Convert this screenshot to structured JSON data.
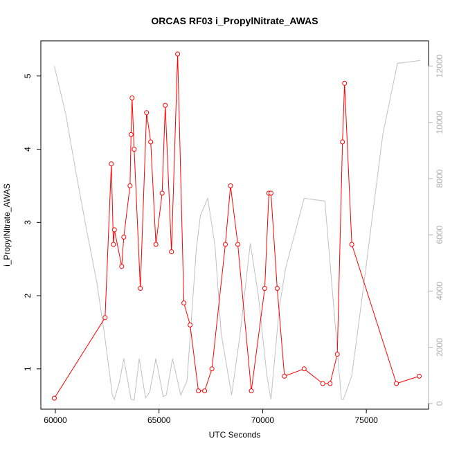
{
  "chart_data": {
    "type": "line",
    "title": "ORCAS RF03 i_PropylNitrate_AWAS",
    "xlabel": "UTC Seconds",
    "ylabel": "i_PropylNitrate_AWAS",
    "xlim": [
      59300,
      78000
    ],
    "ylim": [
      0.45,
      5.48
    ],
    "y2lim": [
      -200,
      12900
    ],
    "x_ticks": [
      60000,
      65000,
      70000,
      75000
    ],
    "y_ticks": [
      1,
      2,
      3,
      4,
      5
    ],
    "y2_ticks": [
      0,
      2000,
      4000,
      6000,
      8000,
      10000,
      12000
    ],
    "colors": {
      "primary": "#ff0000",
      "secondary": "#c0c0c0",
      "axis": "#000000",
      "secondary_axis": "#b0b0b0"
    },
    "series": [
      {
        "axis": "left",
        "style": "line-with-open-circles",
        "x": [
          59950,
          62400,
          62700,
          62800,
          62850,
          63200,
          63300,
          63600,
          63650,
          63700,
          63800,
          64100,
          64400,
          64600,
          64850,
          65150,
          65300,
          65600,
          65900,
          66200,
          66500,
          66900,
          67200,
          67550,
          68200,
          68450,
          68800,
          69450,
          70100,
          70300,
          70400,
          70700,
          71050,
          72000,
          72900,
          73250,
          73600,
          73850,
          73950,
          74300,
          76450,
          77550
        ],
        "y": [
          0.6,
          1.7,
          3.8,
          2.7,
          2.9,
          2.4,
          2.8,
          3.5,
          4.2,
          4.7,
          4.0,
          2.1,
          4.5,
          4.1,
          2.7,
          3.4,
          4.6,
          2.6,
          5.3,
          1.9,
          1.6,
          0.7,
          0.7,
          1.0,
          2.7,
          3.5,
          2.7,
          0.7,
          2.1,
          3.4,
          3.4,
          2.1,
          0.9,
          1.0,
          0.8,
          0.8,
          1.2,
          4.1,
          4.9,
          2.7,
          0.8,
          0.9
        ]
      },
      {
        "axis": "right",
        "style": "line",
        "x": [
          59950,
          60500,
          61000,
          61500,
          62000,
          62400,
          62750,
          62850,
          63100,
          63300,
          63650,
          63800,
          64050,
          64350,
          64550,
          64850,
          65200,
          65350,
          65650,
          66050,
          66350,
          66800,
          67000,
          67350,
          67700,
          68000,
          68500,
          68900,
          69400,
          69800,
          70200,
          70400,
          70800,
          71100,
          72000,
          73000,
          73800,
          73900,
          74300,
          74800,
          75300,
          75800,
          76500,
          77600
        ],
        "y": [
          12000,
          10300,
          8200,
          6200,
          4300,
          2300,
          300,
          150,
          800,
          1600,
          150,
          120,
          1600,
          200,
          400,
          1600,
          250,
          300,
          1600,
          300,
          800,
          5500,
          6700,
          7300,
          5600,
          2500,
          300,
          2400,
          5700,
          3800,
          1000,
          150,
          3400,
          4800,
          7300,
          7200,
          150,
          150,
          1000,
          3800,
          6700,
          9600,
          12100,
          12200
        ]
      }
    ]
  }
}
